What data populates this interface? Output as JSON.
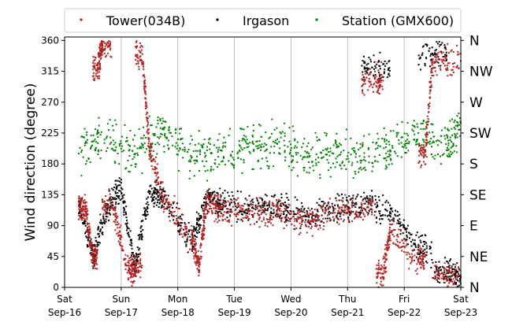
{
  "chart_data": {
    "type": "scatter",
    "ylabel": "Wind direction (degree)",
    "ylim": [
      0,
      365
    ],
    "yticks": [
      0,
      45,
      90,
      135,
      180,
      225,
      270,
      315,
      360
    ],
    "direction_labels": [
      {
        "label": "N",
        "value": 0
      },
      {
        "label": "NE",
        "value": 45
      },
      {
        "label": "E",
        "value": 90
      },
      {
        "label": "SE",
        "value": 135
      },
      {
        "label": "S",
        "value": 180
      },
      {
        "label": "SW",
        "value": 225
      },
      {
        "label": "W",
        "value": 270
      },
      {
        "label": "NW",
        "value": 315
      },
      {
        "label": "N",
        "value": 360
      }
    ],
    "x_ticks": [
      {
        "day": "Sat",
        "date": "Sep-16"
      },
      {
        "day": "Sun",
        "date": "Sep-17"
      },
      {
        "day": "Mon",
        "date": "Sep-18"
      },
      {
        "day": "Tue",
        "date": "Sep-19"
      },
      {
        "day": "Wed",
        "date": "Sep-20"
      },
      {
        "day": "Thu",
        "date": "Sep-21"
      },
      {
        "day": "Fri",
        "date": "Sep-22"
      },
      {
        "day": "Sat",
        "date": "Sep-23"
      }
    ],
    "xlim": [
      "Sep-16",
      "Sep-23"
    ],
    "grid": "vertical at day boundaries",
    "legend_position": "top, above plot",
    "series": [
      {
        "name": "Tower(034B)",
        "color": "#b22222",
        "marker": "dot",
        "points": [
          [
            "Sep-16 06:00",
            118
          ],
          [
            "Sep-16 09:00",
            110
          ],
          [
            "Sep-16 12:00",
            45
          ],
          [
            "Sep-16 14:00",
            320
          ],
          [
            "Sep-16 16:00",
            355
          ],
          [
            "Sep-16 20:00",
            120
          ],
          [
            "Sep-17 03:00",
            25
          ],
          [
            "Sep-17 06:00",
            30
          ],
          [
            "Sep-17 09:00",
            340
          ],
          [
            "Sep-17 12:00",
            200
          ],
          [
            "Sep-17 18:00",
            130
          ],
          [
            "Sep-18 06:00",
            70
          ],
          [
            "Sep-18 09:00",
            30
          ],
          [
            "Sep-18 12:00",
            125
          ],
          [
            "Sep-18 18:00",
            115
          ],
          [
            "Sep-19 06:00",
            110
          ],
          [
            "Sep-19 18:00",
            110
          ],
          [
            "Sep-20 06:00",
            95
          ],
          [
            "Sep-20 18:00",
            110
          ],
          [
            "Sep-21 06:00",
            115
          ],
          [
            "Sep-21 12:00",
            300
          ],
          [
            "Sep-21 15:00",
            20
          ],
          [
            "Sep-21 18:00",
            80
          ],
          [
            "Sep-22 06:00",
            40
          ],
          [
            "Sep-22 09:00",
            200
          ],
          [
            "Sep-22 12:00",
            330
          ],
          [
            "Sep-22 18:00",
            20
          ],
          [
            "Sep-23 00:00",
            330
          ]
        ]
      },
      {
        "name": "Irgason",
        "color": "#000000",
        "marker": "dot",
        "points": [
          [
            "Sep-16 06:00",
            125
          ],
          [
            "Sep-16 12:00",
            45
          ],
          [
            "Sep-16 18:00",
            115
          ],
          [
            "Sep-17 00:00",
            145
          ],
          [
            "Sep-17 06:00",
            30
          ],
          [
            "Sep-17 12:00",
            140
          ],
          [
            "Sep-17 18:00",
            130
          ],
          [
            "Sep-18 06:00",
            65
          ],
          [
            "Sep-18 12:00",
            130
          ],
          [
            "Sep-18 18:00",
            120
          ],
          [
            "Sep-19 06:00",
            115
          ],
          [
            "Sep-19 18:00",
            120
          ],
          [
            "Sep-20 06:00",
            105
          ],
          [
            "Sep-20 18:00",
            115
          ],
          [
            "Sep-21 06:00",
            120
          ],
          [
            "Sep-21 12:00",
            320
          ],
          [
            "Sep-21 18:00",
            110
          ],
          [
            "Sep-22 06:00",
            55
          ],
          [
            "Sep-22 12:00",
            340
          ],
          [
            "Sep-22 18:00",
            25
          ],
          [
            "Sep-23 00:00",
            15
          ]
        ]
      },
      {
        "name": "Station (GMX600)",
        "color": "#008000",
        "marker": "dot",
        "points": [
          [
            "Sep-16 06:00",
            195
          ],
          [
            "Sep-16 18:00",
            220
          ],
          [
            "Sep-17 06:00",
            195
          ],
          [
            "Sep-17 18:00",
            230
          ],
          [
            "Sep-18 06:00",
            190
          ],
          [
            "Sep-18 18:00",
            200
          ],
          [
            "Sep-19 06:00",
            205
          ],
          [
            "Sep-19 18:00",
            210
          ],
          [
            "Sep-20 06:00",
            190
          ],
          [
            "Sep-20 18:00",
            195
          ],
          [
            "Sep-21 06:00",
            185
          ],
          [
            "Sep-21 18:00",
            200
          ],
          [
            "Sep-22 06:00",
            225
          ],
          [
            "Sep-22 18:00",
            200
          ],
          [
            "Sep-23 00:00",
            240
          ]
        ]
      }
    ]
  }
}
